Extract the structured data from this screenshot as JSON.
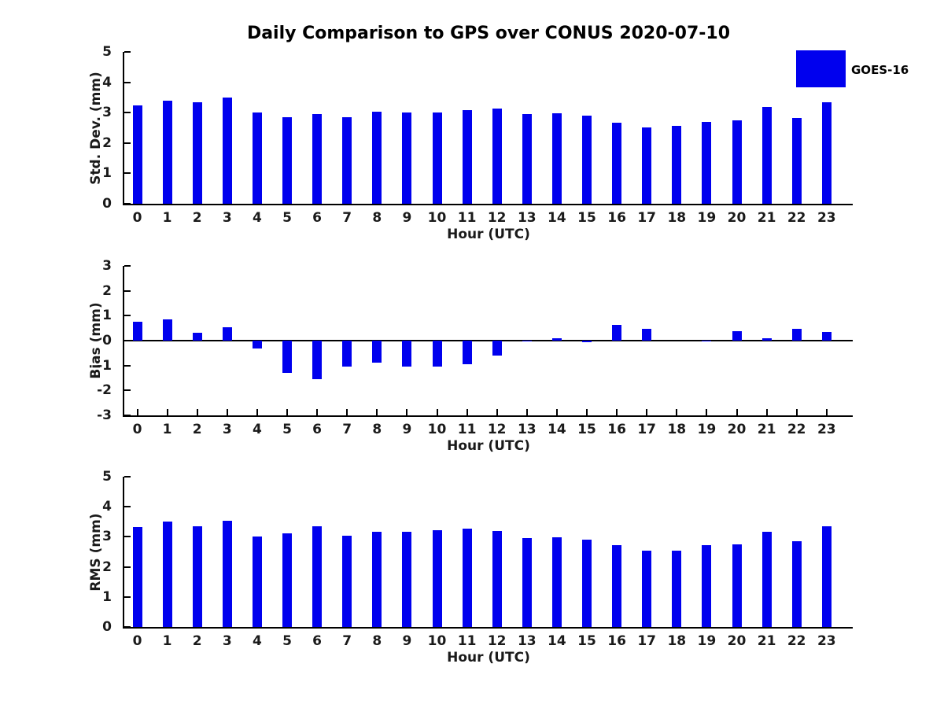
{
  "title": "Daily Comparison to GPS over CONUS 2020-07-10",
  "legend": {
    "label": "GOES-16",
    "color": "#0000EE",
    "position": "upper-right-outside"
  },
  "chart_data": [
    {
      "type": "bar",
      "ylabel": "Std. Dev. (mm)",
      "xlabel": "Hour (UTC)",
      "ylim": [
        0,
        5
      ],
      "yticks": [
        0,
        1,
        2,
        3,
        4,
        5
      ],
      "grid": false,
      "bar_color": "#0000EE",
      "categories": [
        "0",
        "1",
        "2",
        "3",
        "4",
        "5",
        "6",
        "7",
        "8",
        "9",
        "10",
        "11",
        "12",
        "13",
        "14",
        "15",
        "16",
        "17",
        "18",
        "19",
        "20",
        "21",
        "22",
        "23"
      ],
      "series": [
        {
          "name": "GOES-16",
          "values": [
            3.25,
            3.4,
            3.35,
            3.5,
            3.0,
            2.85,
            2.95,
            2.85,
            3.04,
            3.01,
            3.01,
            3.08,
            3.13,
            2.95,
            2.98,
            2.9,
            2.67,
            2.51,
            2.57,
            2.69,
            2.75,
            3.19,
            2.82,
            3.34
          ]
        }
      ]
    },
    {
      "type": "bar",
      "ylabel": "Bias (mm)",
      "xlabel": "Hour (UTC)",
      "ylim": [
        -3,
        3
      ],
      "yticks": [
        -3,
        -2,
        -1,
        0,
        1,
        2,
        3
      ],
      "grid": false,
      "bar_color": "#0000EE",
      "categories": [
        "0",
        "1",
        "2",
        "3",
        "4",
        "5",
        "6",
        "7",
        "8",
        "9",
        "10",
        "11",
        "12",
        "13",
        "14",
        "15",
        "16",
        "17",
        "18",
        "19",
        "20",
        "21",
        "22",
        "23"
      ],
      "series": [
        {
          "name": "GOES-16",
          "values": [
            0.76,
            0.85,
            0.33,
            0.55,
            -0.33,
            -1.29,
            -1.54,
            -1.03,
            -0.89,
            -1.03,
            -1.03,
            -0.95,
            -0.61,
            -0.02,
            0.1,
            -0.05,
            0.64,
            0.48,
            0.0,
            -0.04,
            0.37,
            0.08,
            0.48,
            0.36
          ]
        }
      ]
    },
    {
      "type": "bar",
      "ylabel": "RMS (mm)",
      "xlabel": "Hour (UTC)",
      "ylim": [
        0,
        5
      ],
      "yticks": [
        0,
        1,
        2,
        3,
        4,
        5
      ],
      "grid": false,
      "bar_color": "#0000EE",
      "categories": [
        "0",
        "1",
        "2",
        "3",
        "4",
        "5",
        "6",
        "7",
        "8",
        "9",
        "10",
        "11",
        "12",
        "13",
        "14",
        "15",
        "16",
        "17",
        "18",
        "19",
        "20",
        "21",
        "22",
        "23"
      ],
      "series": [
        {
          "name": "GOES-16",
          "values": [
            3.33,
            3.52,
            3.36,
            3.54,
            3.01,
            3.12,
            3.36,
            3.04,
            3.18,
            3.18,
            3.21,
            3.26,
            3.2,
            2.97,
            2.98,
            2.91,
            2.73,
            2.55,
            2.54,
            2.71,
            2.76,
            3.18,
            2.85,
            3.36
          ]
        }
      ]
    }
  ]
}
